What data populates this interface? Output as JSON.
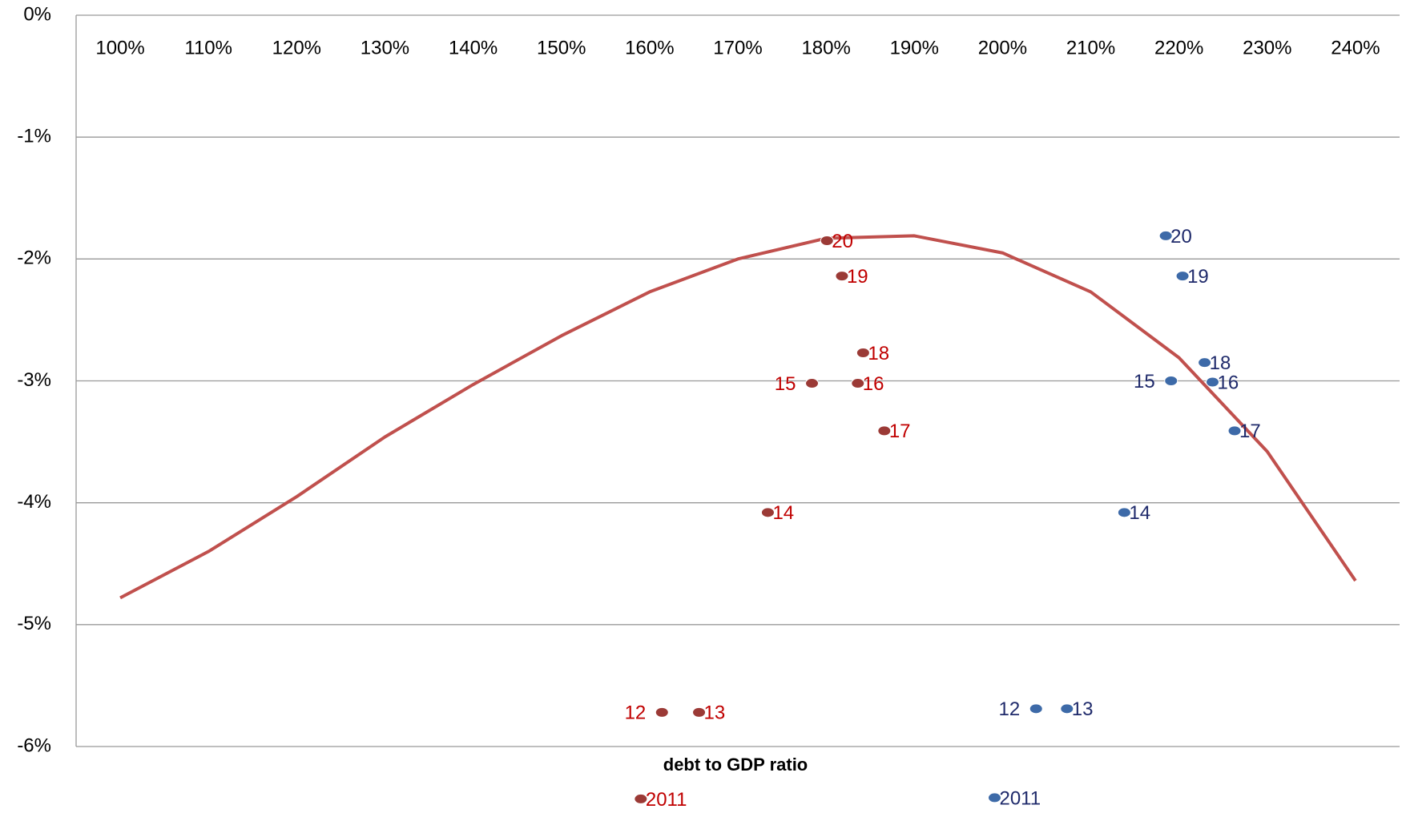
{
  "chart_data": {
    "type": "scatter",
    "x_label": "debt to GDP ratio",
    "xlim": [
      95,
      245
    ],
    "xticks": [
      {
        "value": 100,
        "label": "100%"
      },
      {
        "value": 110,
        "label": "110%"
      },
      {
        "value": 120,
        "label": "120%"
      },
      {
        "value": 130,
        "label": "130%"
      },
      {
        "value": 140,
        "label": "140%"
      },
      {
        "value": 150,
        "label": "150%"
      },
      {
        "value": 160,
        "label": "160%"
      },
      {
        "value": 170,
        "label": "170%"
      },
      {
        "value": 180,
        "label": "180%"
      },
      {
        "value": 190,
        "label": "190%"
      },
      {
        "value": 200,
        "label": "200%"
      },
      {
        "value": 210,
        "label": "210%"
      },
      {
        "value": 220,
        "label": "220%"
      },
      {
        "value": 230,
        "label": "230%"
      },
      {
        "value": 240,
        "label": "240%"
      }
    ],
    "ylim": [
      -6,
      0
    ],
    "yticks": [
      {
        "value": 0,
        "label": "0%"
      },
      {
        "value": -1,
        "label": "-1%"
      },
      {
        "value": -2,
        "label": "-2%"
      },
      {
        "value": -3,
        "label": "-3%"
      },
      {
        "value": -4,
        "label": "-4%"
      },
      {
        "value": -5,
        "label": "-5%"
      },
      {
        "value": -6,
        "label": "-6%"
      }
    ],
    "grid": true,
    "series": [
      {
        "type": "line",
        "color": "#c0504d",
        "x": [
          100,
          110,
          120,
          130,
          140,
          150,
          160,
          170,
          180,
          190,
          200,
          210,
          220,
          230,
          240
        ],
        "values": [
          -4.78,
          -4.4,
          -3.95,
          -3.46,
          -3.03,
          -2.63,
          -2.27,
          -2.0,
          -1.83,
          -1.81,
          -1.95,
          -2.27,
          -2.81,
          -3.58,
          -4.64
        ]
      },
      {
        "type": "scatter",
        "color": "#9b3a36",
        "label_color": "#c00000",
        "labels": [
          "2011",
          "12",
          "13",
          "14",
          "15",
          "16",
          "17",
          "18",
          "19",
          "20"
        ],
        "x": [
          159.0,
          161.4,
          165.6,
          173.4,
          178.4,
          183.6,
          186.6,
          184.2,
          181.8,
          180.1
        ],
        "values": [
          -6.43,
          -5.72,
          -5.72,
          -4.08,
          -3.02,
          -3.02,
          -3.41,
          -2.77,
          -2.14,
          -1.85
        ]
      },
      {
        "type": "scatter",
        "color": "#3d6aa8",
        "label_color": "#1f2a6b",
        "labels": [
          "2011",
          "12",
          "13",
          "14",
          "15",
          "16",
          "17",
          "18",
          "19",
          "20"
        ],
        "x": [
          199.1,
          203.8,
          207.3,
          213.8,
          219.1,
          223.8,
          226.3,
          222.9,
          220.4,
          218.5
        ],
        "values": [
          -6.42,
          -5.69,
          -5.69,
          -4.08,
          -3.0,
          -3.01,
          -3.41,
          -2.85,
          -2.14,
          -1.81
        ]
      }
    ]
  }
}
